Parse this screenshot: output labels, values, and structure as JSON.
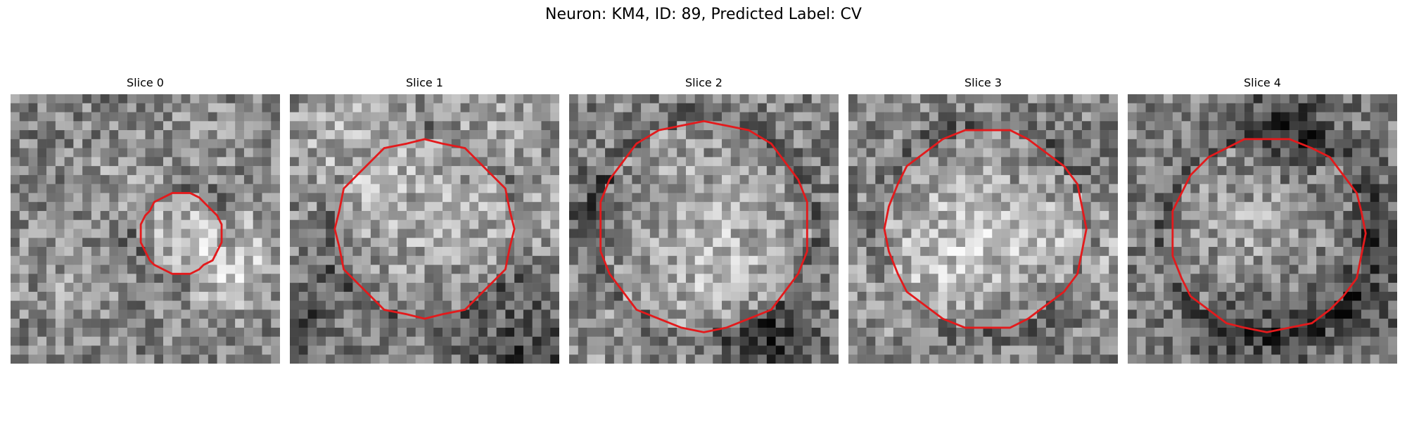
{
  "figure": {
    "title": "Neuron: KM4, ID: 89, Predicted Label: CV"
  },
  "contour_color": "#e31a1c",
  "colormap": "gray",
  "slices": [
    {
      "label": "Slice 0",
      "roi_radius": 0.15,
      "centroid": [
        0.63,
        0.52
      ],
      "bg_seed": 11
    },
    {
      "label": "Slice 1",
      "roi_radius": 0.33,
      "centroid": [
        0.5,
        0.5
      ],
      "bg_seed": 23
    },
    {
      "label": "Slice 2",
      "roi_radius": 0.39,
      "centroid": [
        0.5,
        0.49
      ],
      "bg_seed": 37
    },
    {
      "label": "Slice 3",
      "roi_radius": 0.37,
      "centroid": [
        0.51,
        0.5
      ],
      "bg_seed": 41
    },
    {
      "label": "Slice 4",
      "roi_radius": 0.36,
      "centroid": [
        0.52,
        0.52
      ],
      "bg_seed": 53
    }
  ]
}
